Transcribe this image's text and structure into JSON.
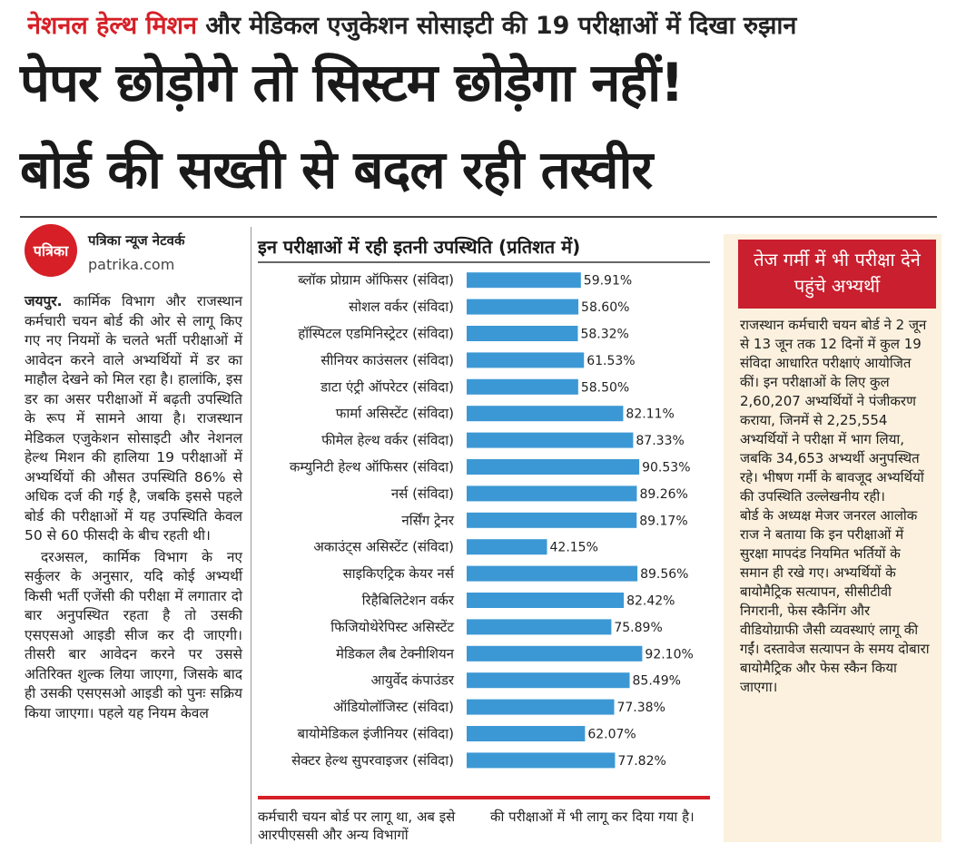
{
  "kicker": {
    "red": "नेशनल हेल्थ मिशन",
    "rest": "और मेडिकल एजुकेशन सोसाइटी की 19 परीक्षाओं में दिखा रुझान"
  },
  "headline": {
    "line1": "पेपर छोड़ोगे तो सिस्टम छोड़ेगा नहीं!",
    "line2": "बोर्ड की सख्ती से बदल रही तस्वीर"
  },
  "byline": {
    "logo": "पत्रिका",
    "network": "पत्रिका न्यूज नेटवर्क",
    "site": "patrika.com"
  },
  "article": {
    "dateline": "जयपुर.",
    "p1": "कार्मिक विभाग और राजस्थान कर्मचारी चयन बोर्ड की ओर से लागू किए गए नए नियमों के चलते भर्ती परीक्षाओं में आवेदन करने वाले अभ्यर्थियों में डर का माहौल देखने को मिल रहा है। हालांकि, इस डर का असर परीक्षाओं में बढ़ती उपस्थिति के रूप में सामने आया है। राजस्थान मेडिकल एजुकेशन सोसाइटी और नेशनल हेल्थ मिशन की हालिया 19 परीक्षाओं में अभ्यर्थियों की औसत उपस्थिति 86% से अधिक दर्ज की गई है, जबकि इससे पहले बोर्ड की परीक्षाओं में यह उपस्थिति केवल 50 से 60 फीसदी के बीच रहती थी।",
    "p2": "दरअसल, कार्मिक विभाग के नए सर्कुलर के अनुसार, यदि कोई अभ्यर्थी किसी भर्ती एजेंसी की परीक्षा में लगातार दो बार अनुपस्थित रहता है तो उसकी एसएसओ आइडी सीज कर दी जाएगी। तीसरी बार आवेदन करने पर उससे अतिरिक्त शुल्क लिया जाएगा, जिसके बाद ही उसकी एसएसओ आइडी को पुनः सक्रिय किया जाएगा। पहले यह नियम केवल",
    "p3a": "कर्मचारी चयन बोर्ड पर लागू था, अब इसे आरपीएससी और अन्य विभागों",
    "p3b": "की परीक्षाओं में भी लागू कर दिया गया है।"
  },
  "chart_data": {
    "type": "bar",
    "orientation": "horizontal",
    "title": "इन परीक्षाओं में रही इतनी उपस्थिति (प्रतिशत में)",
    "categories": [
      "ब्लॉक प्रोग्राम ऑफिसर (संविदा)",
      "सोशल वर्कर (संविदा)",
      "हॉस्पिटल एडमिनिस्ट्रेटर (संविदा)",
      "सीनियर काउंसलर (संविदा)",
      "डाटा एंट्री ऑपरेटर (संविदा)",
      "फार्मा असिस्टेंट (संविदा)",
      "फीमेल हेल्थ वर्कर (संविदा)",
      "कम्युनिटी हेल्थ ऑफिसर (संविदा)",
      "नर्स (संविदा)",
      "नर्सिंग ट्रेनर",
      "अकाउंट्स असिस्टेंट (संविदा)",
      "साइकिएट्रिक केयर नर्स",
      "रिहैबिलिटेशन वर्कर",
      "फिजियोथेरेपिस्ट असिस्टेंट",
      "मेडिकल लैब टेक्नीशियन",
      "आयुर्वेद कंपाउंडर",
      "ऑडियोलॉजिस्ट (संविदा)",
      "बायोमेडिकल इंजीनियर (संविदा)",
      "सेक्टर हेल्थ सुपरवाइजर (संविदा)"
    ],
    "values": [
      59.91,
      58.6,
      58.32,
      61.53,
      58.5,
      82.11,
      87.33,
      90.53,
      89.26,
      89.17,
      42.15,
      89.56,
      82.42,
      75.89,
      92.1,
      85.49,
      77.38,
      62.07,
      77.82
    ],
    "value_labels": [
      "59.91%",
      "58.60%",
      "58.32%",
      "61.53%",
      "58.50%",
      "82.11%",
      "87.33%",
      "90.53%",
      "89.26%",
      "89.17%",
      "42.15%",
      "89.56%",
      "82.42%",
      "75.89%",
      "92.10%",
      "85.49%",
      "77.38%",
      "62.07%",
      "77.82%"
    ],
    "bar_color": "#3c98d4"
  },
  "sidebar": {
    "header": "तेज गर्मी में भी परीक्षा देने पहुंचे अभ्यर्थी",
    "p1": "राजस्थान कर्मचारी चयन बोर्ड ने 2 जून से 13 जून तक 12 दिनों में कुल 19 संविदा आधारित परीक्षाएं आयोजित कीं। इन परीक्षाओं के लिए कुल 2,60,207 अभ्यर्थियों ने पंजीकरण कराया, जिनमें से 2,25,554 अभ्यर्थियों ने परीक्षा में भाग लिया, जबकि 34,653 अभ्यर्थी अनुपस्थित रहे। भीषण गर्मी के बावजूद अभ्यर्थियों की उपस्थिति उल्लेखनीय रही।",
    "p2": "बोर्ड के अध्यक्ष मेजर जनरल आलोक राज ने बताया कि इन परीक्षाओं में सुरक्षा मापदंड नियमित भर्तियों के समान ही रखे गए। अभ्यर्थियों के बायोमैट्रिक सत्यापन, सीसीटीवी निगरानी, फेस स्कैनिंग और वीडियोग्राफी जैसी व्यवस्थाएं लागू की गईं। दस्तावेज सत्यापन के समय दोबारा बायोमैट्रिक और फेस स्कैन किया जाएगा।"
  },
  "colors": {
    "accent_red": "#d61f26",
    "sidebar_bg": "#fbf1de",
    "bar_blue": "#3c98d4"
  }
}
